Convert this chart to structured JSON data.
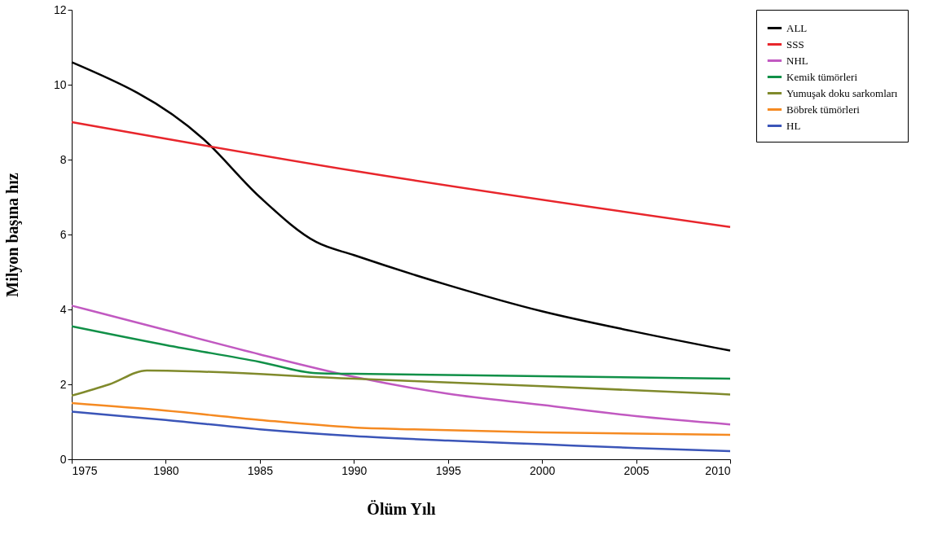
{
  "chart_data": {
    "type": "line",
    "xlabel": "Ölüm Yılı",
    "ylabel": "Milyon başına hız",
    "xlim": [
      1975,
      2010
    ],
    "xticks": [
      1975,
      1980,
      1985,
      1990,
      1995,
      2000,
      2005,
      2010
    ],
    "ylim": [
      0,
      12
    ],
    "yticks": [
      0,
      2,
      4,
      6,
      8,
      10,
      12
    ],
    "grid": false,
    "legend": "right",
    "marker": "none",
    "line_style": "solid",
    "series": [
      {
        "name": "ALL",
        "color": "#000000",
        "x": [
          1975,
          1982,
          1985,
          1988,
          1990,
          1995,
          2000,
          2005,
          2010
        ],
        "values": [
          10.6,
          8.55,
          7.0,
          5.8,
          5.45,
          4.65,
          3.95,
          3.4,
          2.9
        ]
      },
      {
        "name": "SSS",
        "color": "#e8262c",
        "x": [
          1975,
          1990,
          2010
        ],
        "values": [
          9.0,
          7.7,
          6.2
        ]
      },
      {
        "name": "NHL",
        "color": "#c159c1",
        "x": [
          1975,
          1980,
          1985,
          1990,
          1995,
          2000,
          2005,
          2010
        ],
        "values": [
          4.1,
          3.45,
          2.8,
          2.2,
          1.75,
          1.45,
          1.15,
          0.93
        ]
      },
      {
        "name": "Kemik tümörleri",
        "color": "#119048",
        "x": [
          1975,
          1980,
          1985,
          1988,
          1990,
          2000,
          2010
        ],
        "values": [
          3.55,
          3.05,
          2.6,
          2.3,
          2.28,
          2.22,
          2.15
        ]
      },
      {
        "name": "Yumuşak doku sarkomları",
        "color": "#808a2c",
        "x": [
          1975,
          1977,
          1979,
          1990,
          2000,
          2010
        ],
        "values": [
          1.7,
          2.0,
          2.37,
          2.15,
          1.95,
          1.73
        ]
      },
      {
        "name": "Böbrek tümörleri",
        "color": "#f58a22",
        "x": [
          1975,
          1980,
          1985,
          1990,
          1993,
          2000,
          2010
        ],
        "values": [
          1.5,
          1.3,
          1.05,
          0.85,
          0.8,
          0.72,
          0.65
        ]
      },
      {
        "name": "HL",
        "color": "#3b55b8",
        "x": [
          1975,
          1980,
          1985,
          1990,
          1995,
          2000,
          2005,
          2010
        ],
        "values": [
          1.27,
          1.05,
          0.8,
          0.62,
          0.5,
          0.4,
          0.3,
          0.22
        ]
      }
    ]
  }
}
